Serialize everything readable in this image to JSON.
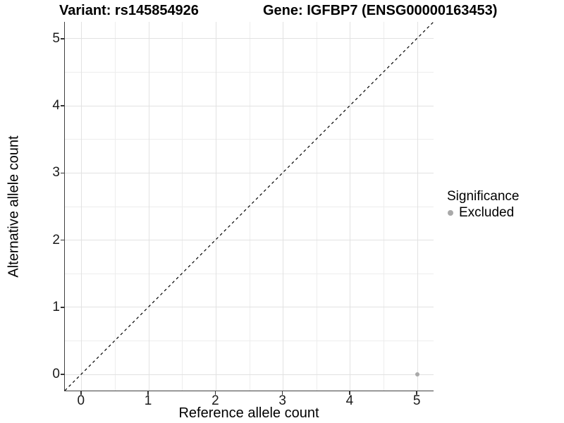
{
  "titles": {
    "left": "Variant: rs145854926",
    "right": "Gene: IGFBP7 (ENSG00000163453)"
  },
  "chart_data": {
    "type": "scatter",
    "title": "Variant: rs145854926   Gene: IGFBP7 (ENSG00000163453)",
    "xlabel": "Reference allele count",
    "ylabel": "Alternative allele count",
    "xlim": [
      -0.25,
      5.25
    ],
    "ylim": [
      -0.25,
      5.25
    ],
    "x_ticks": [
      0,
      1,
      2,
      3,
      4,
      5
    ],
    "x_tick_labels": [
      "0",
      "1",
      "2",
      "3",
      "4",
      "5"
    ],
    "y_ticks": [
      0,
      1,
      2,
      3,
      4,
      5
    ],
    "y_tick_labels": [
      "0",
      "1",
      "2",
      "3",
      "4",
      "5"
    ],
    "grid": {
      "major": [
        0,
        1,
        2,
        3,
        4,
        5
      ],
      "minor": [
        0.5,
        1.5,
        2.5,
        3.5,
        4.5
      ],
      "major_color": "#E2E2E2",
      "minor_color": "#EDEDED"
    },
    "identity_line": {
      "slope": 1,
      "intercept": 0,
      "style": "dashed",
      "color": "#000000"
    },
    "series": [
      {
        "name": "Excluded",
        "color": "#A9A9A9",
        "points": [
          {
            "x": 5,
            "y": 0
          }
        ]
      }
    ],
    "legend": {
      "title": "Significance",
      "position": "right",
      "items": [
        {
          "label": "Excluded",
          "color": "#A9A9A9",
          "marker": "circle"
        }
      ]
    }
  }
}
